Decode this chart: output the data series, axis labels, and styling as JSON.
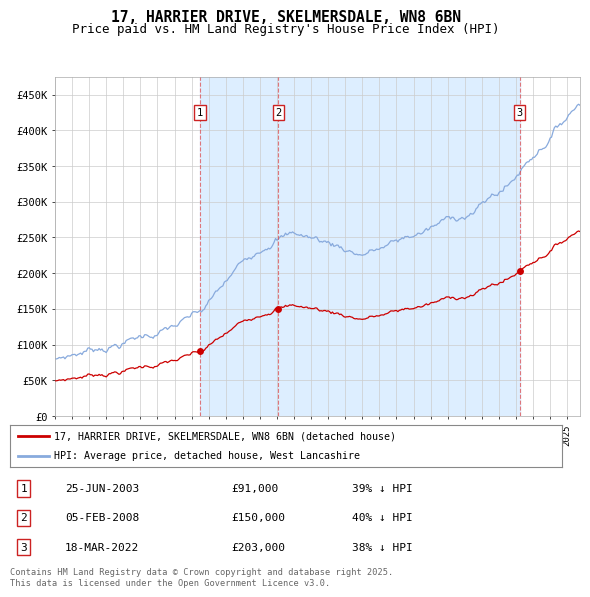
{
  "title": "17, HARRIER DRIVE, SKELMERSDALE, WN8 6BN",
  "subtitle": "Price paid vs. HM Land Registry's House Price Index (HPI)",
  "ylim": [
    0,
    475000
  ],
  "yticks": [
    0,
    50000,
    100000,
    150000,
    200000,
    250000,
    300000,
    350000,
    400000,
    450000
  ],
  "ytick_labels": [
    "£0",
    "£50K",
    "£100K",
    "£150K",
    "£200K",
    "£250K",
    "£300K",
    "£350K",
    "£400K",
    "£450K"
  ],
  "xlim_start": 1995.0,
  "xlim_end": 2025.75,
  "sale_dates": [
    2003.49,
    2008.09,
    2022.21
  ],
  "sale_prices": [
    91000,
    150000,
    203000
  ],
  "sale_labels": [
    "1",
    "2",
    "3"
  ],
  "sale_info": [
    {
      "label": "1",
      "date": "25-JUN-2003",
      "price": "£91,000",
      "pct": "39% ↓ HPI"
    },
    {
      "label": "2",
      "date": "05-FEB-2008",
      "price": "£150,000",
      "pct": "40% ↓ HPI"
    },
    {
      "label": "3",
      "date": "18-MAR-2022",
      "price": "£203,000",
      "pct": "38% ↓ HPI"
    }
  ],
  "legend_line1": "17, HARRIER DRIVE, SKELMERSDALE, WN8 6BN (detached house)",
  "legend_line2": "HPI: Average price, detached house, West Lancashire",
  "footer": "Contains HM Land Registry data © Crown copyright and database right 2025.\nThis data is licensed under the Open Government Licence v3.0.",
  "line_color_sale": "#cc0000",
  "line_color_hpi": "#88aadd",
  "shade_color": "#ddeeff",
  "grid_color": "#cccccc",
  "background_color": "#ffffff",
  "title_fontsize": 10.5,
  "subtitle_fontsize": 9
}
